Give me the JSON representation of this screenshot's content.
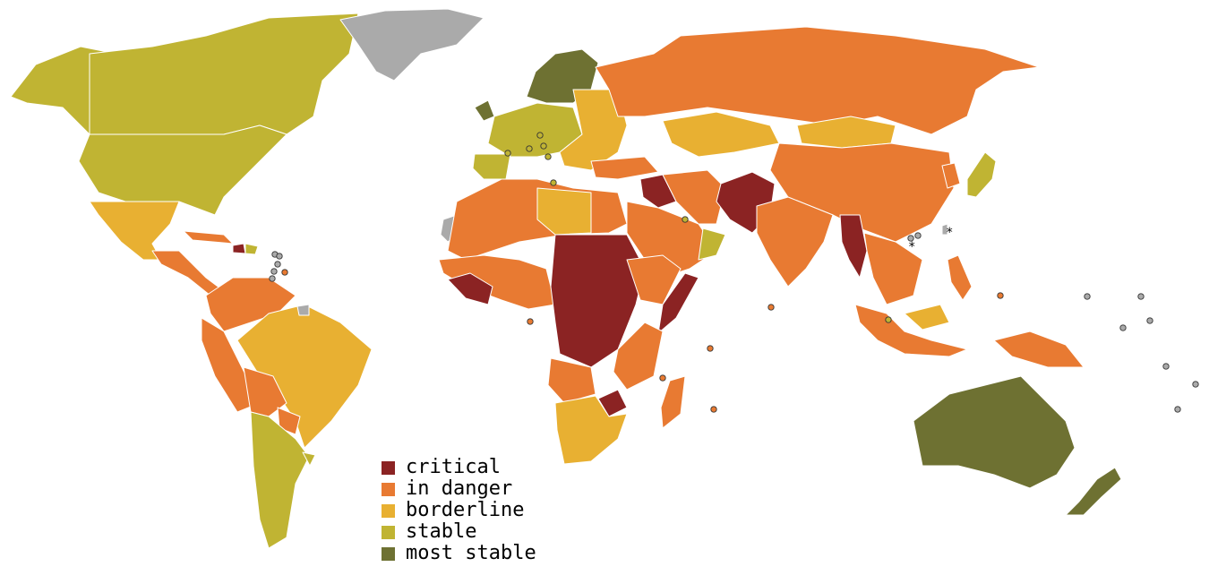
{
  "colors": {
    "critical": "#8b2323",
    "in_danger": "#e87a32",
    "borderline": "#e8b032",
    "stable": "#c0b433",
    "most_stable": "#6e7132",
    "no_data": "#aaaaaa"
  },
  "legend": {
    "items": [
      {
        "key": "critical",
        "label": "critical"
      },
      {
        "key": "in_danger",
        "label": "in danger"
      },
      {
        "key": "borderline",
        "label": "borderline"
      },
      {
        "key": "stable",
        "label": "stable"
      },
      {
        "key": "most_stable",
        "label": "most stable"
      }
    ]
  },
  "annotations": {
    "asterisk_taiwan": "*",
    "asterisk_hongkong": "*"
  }
}
